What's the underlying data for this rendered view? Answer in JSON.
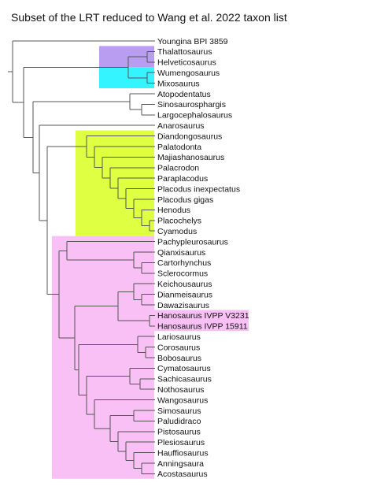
{
  "title": "Subset of the LRT reduced to Wang et al. 2022 taxon list",
  "colors": {
    "purple": "#b89df0",
    "cyan": "#33f4ff",
    "yellow_green": "#deff42",
    "pink": "#f8c0f4",
    "line": "#555555",
    "text": "#111111"
  },
  "taxa": [
    "Youngina BPI 3859",
    "Thalattosaurus",
    "Helveticosaurus",
    "Wumengosaurus",
    "Mixosaurus",
    "Atopodentatus",
    "Sinosaurosphargis",
    "Largocephalosaurus",
    "Anarosaurus",
    "Diandongosaurus",
    "Palatodonta",
    "Majiashanosaurus",
    "Palacrodon",
    "Paraplacodus",
    "Placodus inexpectatus",
    "Placodus gigas",
    "Henodus",
    "Placochelys",
    "Cyamodus",
    "Pachypleurosaurus",
    "Qianxisaurus",
    "Cartorhynchus",
    "Sclerocormus",
    "Keichousaurus",
    "Dianmeisaurus",
    "Dawazisaurus",
    "Hanosaurus IVPP V3231",
    "Hanosaurus IVPP 15911",
    "Lariosaurus",
    "Corosaurus",
    "Bobosaurus",
    "Cymatosaurus",
    "Sachicasaurus",
    "Nothosaurus",
    "Wangosaurus",
    "Simosaurus",
    "Paludidraco",
    "Pistosaurus",
    "Plesiosaurus",
    "Hauffiosaurus",
    "Anningsaura",
    "Acostasaurus"
  ]
}
